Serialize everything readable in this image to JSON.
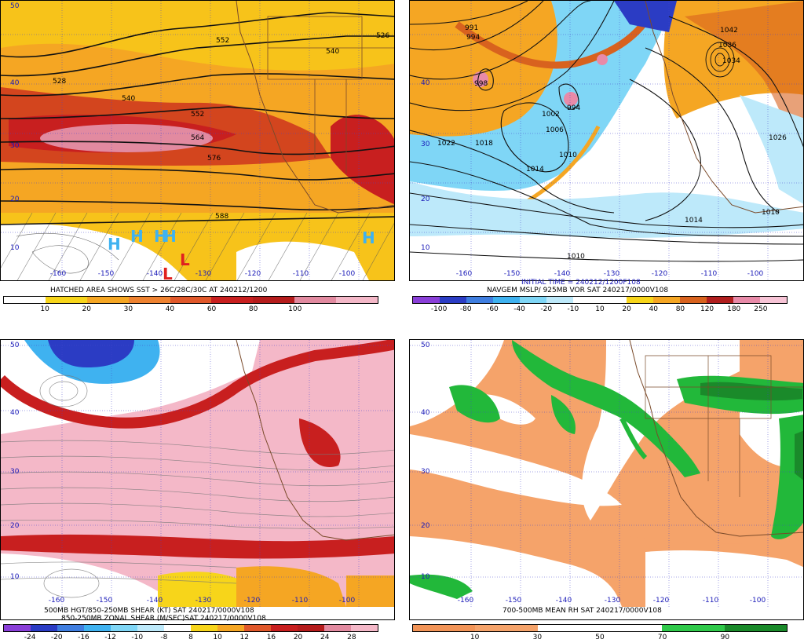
{
  "panels": [
    {
      "id": "p1",
      "caption": [
        "HATCHED AREA SHOWS SST > 26C/28C/30C AT 240212/1200"
      ],
      "colorbar": [
        "10",
        "20",
        "30",
        "40",
        "60",
        "80",
        "100"
      ],
      "lat_labels": [
        "50",
        "40",
        "30",
        "20",
        "10"
      ],
      "lon_labels": [
        "-160",
        "-150",
        "-140",
        "-130",
        "-120",
        "-110",
        "-100"
      ],
      "contour_labels": [
        "552",
        "528",
        "540",
        "526",
        "528",
        "540",
        "552",
        "564",
        "576",
        "588"
      ],
      "high_marks": [
        "H",
        "H",
        "H",
        "H",
        "H"
      ],
      "low_marks": [
        "L",
        "L"
      ]
    },
    {
      "id": "p2",
      "caption": [
        "INITIAL TIME = 240212/1200F108",
        "NAVGEM MSLP/ 925MB VOR SAT 240217/0000V108"
      ],
      "colorbar": [
        "-100",
        "-80",
        "-60",
        "-40",
        "-20",
        "-10",
        "10",
        "20",
        "40",
        "80",
        "120",
        "180",
        "250"
      ],
      "lat_labels": [
        "40",
        "30",
        "20",
        "10"
      ],
      "lon_labels": [
        "-160",
        "-150",
        "-140",
        "-130",
        "-120",
        "-110",
        "-100"
      ],
      "contour_labels": [
        "991",
        "994",
        "998",
        "994",
        "1002",
        "1006",
        "1022",
        "1018",
        "1014",
        "1010",
        "1042",
        "1036",
        "1034",
        "1026",
        "1010",
        "1014",
        "1010"
      ]
    },
    {
      "id": "p3",
      "caption": [
        "500MB HGT/850-250MB SHEAR (KT) SAT 240217/0000V108",
        "850-250MB ZONAL SHEAR (M/SEC)SAT 240217/0000V108"
      ],
      "colorbar": [
        "-24",
        "-20",
        "-16",
        "-12",
        "-10",
        "-8",
        "8",
        "10",
        "12",
        "16",
        "20",
        "24",
        "28"
      ],
      "lat_labels": [
        "50",
        "40",
        "30",
        "20",
        "10"
      ],
      "lon_labels": [
        "-160",
        "-150",
        "-140",
        "-130",
        "-120",
        "-110",
        "-100"
      ]
    },
    {
      "id": "p4",
      "caption": [
        "700-500MB MEAN RH SAT 240217/0000V108"
      ],
      "colorbar": [
        "10",
        "30",
        "50",
        "70",
        "90"
      ],
      "lat_labels": [
        "50",
        "40",
        "30",
        "20",
        "10"
      ],
      "lon_labels": [
        "-160",
        "-150",
        "-140",
        "-130",
        "-120",
        "-110",
        "-100"
      ]
    }
  ],
  "colors": {
    "p1_bar": [
      "#ffffff",
      "#f7d51a",
      "#f5a623",
      "#ee8230",
      "#e0582a",
      "#c81f1f",
      "#b51c1c",
      "#e28aa0",
      "#f4b8c8"
    ],
    "p2_bar": [
      "#8a3fd8",
      "#2b3cc4",
      "#3f7ee0",
      "#3fb2f0",
      "#7fd6f6",
      "#bde9fa",
      "#ffffff",
      "#ffffff",
      "#f7d51a",
      "#f5a623",
      "#d8621e",
      "#b01e1e",
      "#e88aa8",
      "#f7c4d6"
    ],
    "p3_bar": [
      "#8a3fd8",
      "#2b3cc4",
      "#3f7ee0",
      "#3fb2f0",
      "#7fd6f6",
      "#bde9fa",
      "#ffffff",
      "#f7d51a",
      "#f5a623",
      "#e0582a",
      "#c81f1f",
      "#b51c1c",
      "#e28aa0",
      "#f4b8c8"
    ],
    "p4_bar": [
      "#f29457",
      "#f5a36a",
      "#ffffff",
      "#ffffff",
      "#2fc94a",
      "#1a8a2a"
    ],
    "ocean_warm": "#f5a623",
    "shear_pink": "#f4b8c8",
    "rh_orange": "#f5a36a",
    "rh_green": "#22b83a"
  }
}
